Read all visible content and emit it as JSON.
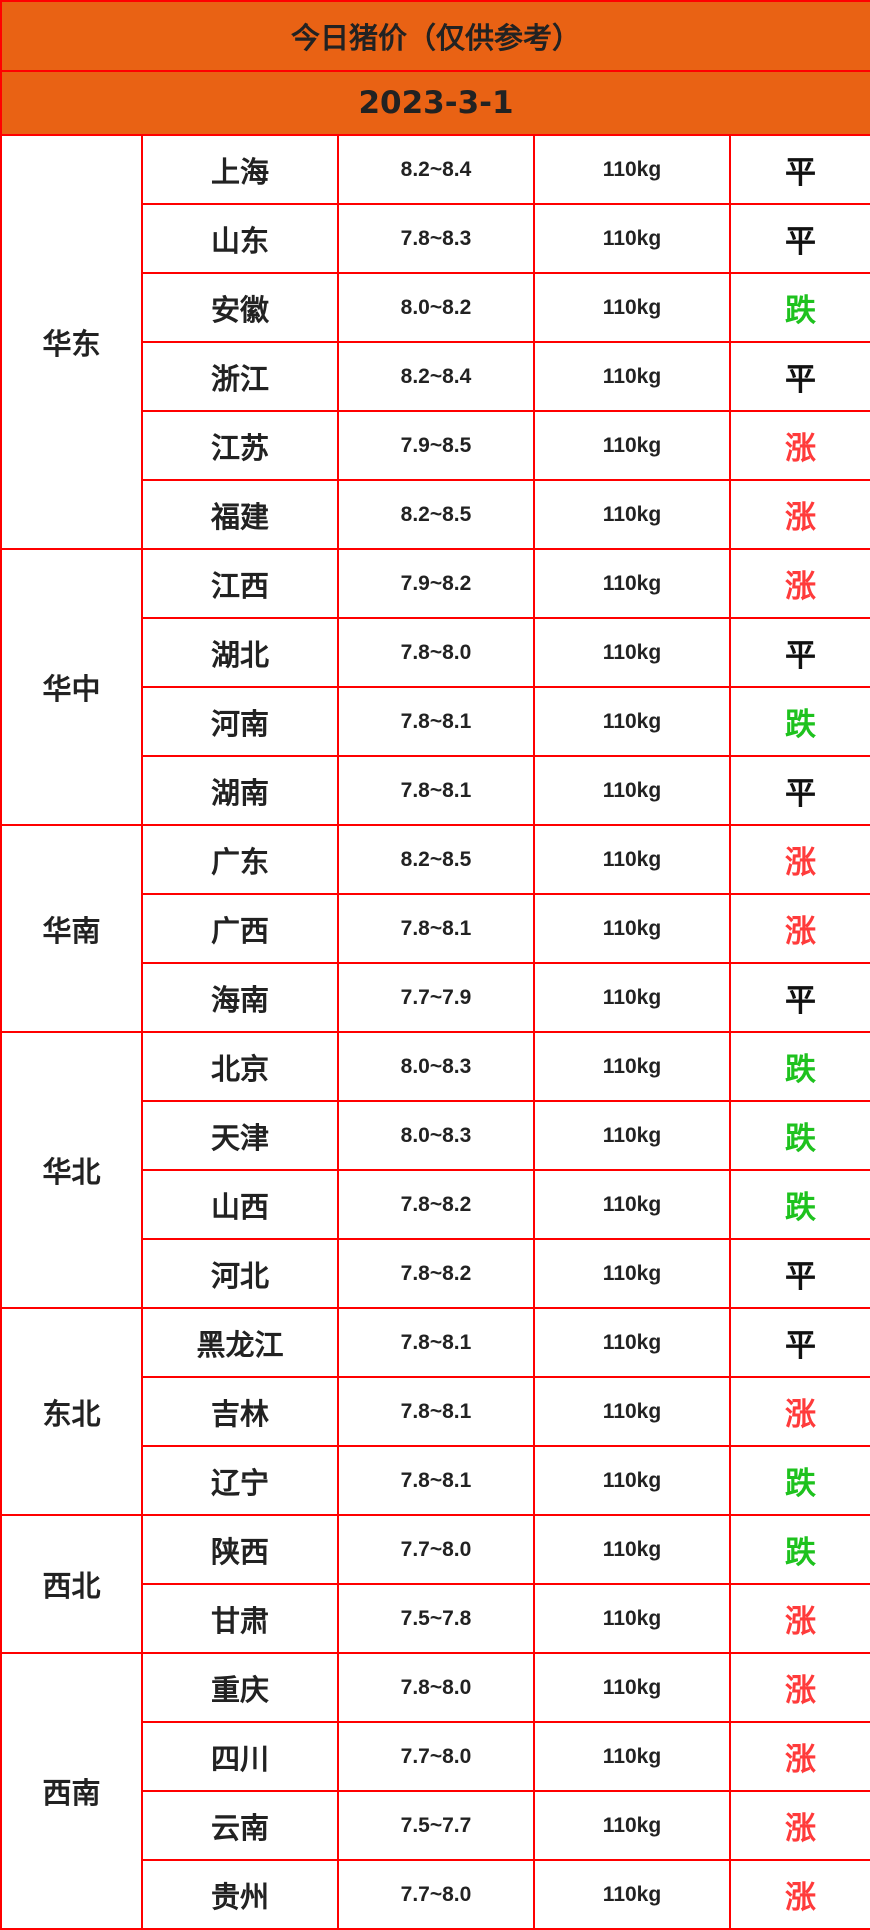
{
  "title": "今日猪价（仅供参考）",
  "date": "2023-3-1",
  "colors": {
    "header_bg": "#e96214",
    "border": "#ff0000",
    "up": "#ff3b3b",
    "down": "#1ec21e",
    "flat": "#111111"
  },
  "regions": [
    {
      "name": "华东",
      "rows": [
        {
          "province": "上海",
          "price": "8.2~8.4",
          "weight": "110kg",
          "trend": "平"
        },
        {
          "province": "山东",
          "price": "7.8~8.3",
          "weight": "110kg",
          "trend": "平"
        },
        {
          "province": "安徽",
          "price": "8.0~8.2",
          "weight": "110kg",
          "trend": "跌"
        },
        {
          "province": "浙江",
          "price": "8.2~8.4",
          "weight": "110kg",
          "trend": "平"
        },
        {
          "province": "江苏",
          "price": "7.9~8.5",
          "weight": "110kg",
          "trend": "涨"
        },
        {
          "province": "福建",
          "price": "8.2~8.5",
          "weight": "110kg",
          "trend": "涨"
        }
      ]
    },
    {
      "name": "华中",
      "rows": [
        {
          "province": "江西",
          "price": "7.9~8.2",
          "weight": "110kg",
          "trend": "涨"
        },
        {
          "province": "湖北",
          "price": "7.8~8.0",
          "weight": "110kg",
          "trend": "平"
        },
        {
          "province": "河南",
          "price": "7.8~8.1",
          "weight": "110kg",
          "trend": "跌"
        },
        {
          "province": "湖南",
          "price": "7.8~8.1",
          "weight": "110kg",
          "trend": "平"
        }
      ]
    },
    {
      "name": "华南",
      "rows": [
        {
          "province": "广东",
          "price": "8.2~8.5",
          "weight": "110kg",
          "trend": "涨"
        },
        {
          "province": "广西",
          "price": "7.8~8.1",
          "weight": "110kg",
          "trend": "涨"
        },
        {
          "province": "海南",
          "price": "7.7~7.9",
          "weight": "110kg",
          "trend": "平"
        }
      ]
    },
    {
      "name": "华北",
      "rows": [
        {
          "province": "北京",
          "price": "8.0~8.3",
          "weight": "110kg",
          "trend": "跌"
        },
        {
          "province": "天津",
          "price": "8.0~8.3",
          "weight": "110kg",
          "trend": "跌"
        },
        {
          "province": "山西",
          "price": "7.8~8.2",
          "weight": "110kg",
          "trend": "跌"
        },
        {
          "province": "河北",
          "price": "7.8~8.2",
          "weight": "110kg",
          "trend": "平"
        }
      ]
    },
    {
      "name": "东北",
      "rows": [
        {
          "province": "黑龙江",
          "price": "7.8~8.1",
          "weight": "110kg",
          "trend": "平"
        },
        {
          "province": "吉林",
          "price": "7.8~8.1",
          "weight": "110kg",
          "trend": "涨"
        },
        {
          "province": "辽宁",
          "price": "7.8~8.1",
          "weight": "110kg",
          "trend": "跌"
        }
      ]
    },
    {
      "name": "西北",
      "rows": [
        {
          "province": "陕西",
          "price": "7.7~8.0",
          "weight": "110kg",
          "trend": "跌"
        },
        {
          "province": "甘肃",
          "price": "7.5~7.8",
          "weight": "110kg",
          "trend": "涨"
        }
      ]
    },
    {
      "name": "西南",
      "rows": [
        {
          "province": "重庆",
          "price": "7.8~8.0",
          "weight": "110kg",
          "trend": "涨"
        },
        {
          "province": "四川",
          "price": "7.7~8.0",
          "weight": "110kg",
          "trend": "涨"
        },
        {
          "province": "云南",
          "price": "7.5~7.7",
          "weight": "110kg",
          "trend": "涨"
        },
        {
          "province": "贵州",
          "price": "7.7~8.0",
          "weight": "110kg",
          "trend": "涨"
        }
      ]
    }
  ]
}
